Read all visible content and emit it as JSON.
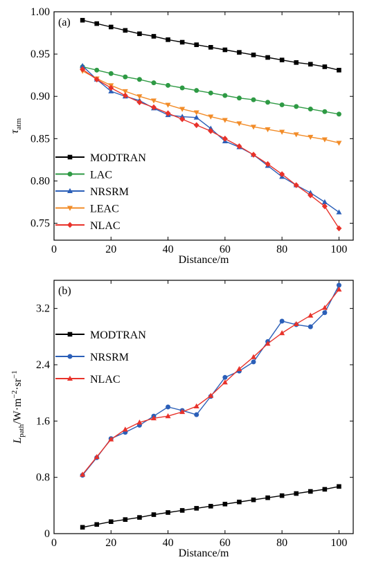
{
  "chart_data": [
    {
      "type": "line",
      "panel_label": "(a)",
      "xlabel": "Distance/m",
      "ylabel_main": "τ",
      "ylabel_sub": "atm",
      "xlim": [
        0,
        105
      ],
      "ylim": [
        0.73,
        1.0
      ],
      "xticks": [
        0,
        20,
        40,
        60,
        80,
        100
      ],
      "yticks": [
        0.75,
        0.8,
        0.85,
        0.9,
        0.95,
        1.0
      ],
      "ytick_labels": [
        "0.75",
        "0.80",
        "0.85",
        "0.90",
        "0.95",
        "1.00"
      ],
      "grid": false,
      "legend_position": "bottom-left",
      "x": [
        10,
        15,
        20,
        25,
        30,
        35,
        40,
        45,
        50,
        55,
        60,
        65,
        70,
        75,
        80,
        85,
        90,
        95,
        100
      ],
      "series": [
        {
          "name": "MODTRAN",
          "color": "#000000",
          "marker": "square",
          "values": [
            0.99,
            0.986,
            0.982,
            0.978,
            0.974,
            0.971,
            0.967,
            0.964,
            0.961,
            0.958,
            0.955,
            0.952,
            0.949,
            0.946,
            0.943,
            0.94,
            0.938,
            0.935,
            0.931
          ]
        },
        {
          "name": "LAC",
          "color": "#2e9a44",
          "marker": "circle",
          "values": [
            0.935,
            0.931,
            0.927,
            0.923,
            0.92,
            0.916,
            0.913,
            0.91,
            0.907,
            0.904,
            0.901,
            0.898,
            0.896,
            0.893,
            0.89,
            0.888,
            0.885,
            0.882,
            0.879
          ]
        },
        {
          "name": "NRSRM",
          "color": "#2b5fb8",
          "marker": "triangle-up",
          "values": [
            0.936,
            0.92,
            0.906,
            0.9,
            0.895,
            0.886,
            0.878,
            0.876,
            0.875,
            0.862,
            0.847,
            0.84,
            0.831,
            0.818,
            0.805,
            0.795,
            0.786,
            0.775,
            0.763
          ]
        },
        {
          "name": "LEAC",
          "color": "#f28c28",
          "marker": "triangle-down",
          "values": [
            0.93,
            0.921,
            0.913,
            0.906,
            0.9,
            0.895,
            0.89,
            0.885,
            0.881,
            0.876,
            0.872,
            0.868,
            0.864,
            0.861,
            0.858,
            0.855,
            0.852,
            0.849,
            0.845
          ]
        },
        {
          "name": "NLAC",
          "color": "#e8322a",
          "marker": "diamond",
          "values": [
            0.932,
            0.92,
            0.91,
            0.901,
            0.893,
            0.887,
            0.88,
            0.873,
            0.866,
            0.859,
            0.85,
            0.841,
            0.831,
            0.82,
            0.808,
            0.795,
            0.783,
            0.77,
            0.744
          ]
        }
      ]
    },
    {
      "type": "line",
      "panel_label": "(b)",
      "xlabel": "Distance/m",
      "ylabel_main": "L",
      "ylabel_sub": "path",
      "ylabel_unit": "/W·m",
      "ylabel_sup1": "−2",
      "ylabel_mid": "·sr",
      "ylabel_sup2": "−1",
      "xlim": [
        0,
        105
      ],
      "ylim": [
        0,
        3.6
      ],
      "xticks": [
        0,
        20,
        40,
        60,
        80,
        100
      ],
      "yticks": [
        0,
        0.8,
        1.6,
        2.4,
        3.2
      ],
      "ytick_labels": [
        "0",
        "0.8",
        "1.6",
        "2.4",
        "3.2"
      ],
      "grid": false,
      "legend_position": "top-left",
      "x": [
        10,
        15,
        20,
        25,
        30,
        35,
        40,
        45,
        50,
        55,
        60,
        65,
        70,
        75,
        80,
        85,
        90,
        95,
        100
      ],
      "series": [
        {
          "name": "MODTRAN",
          "color": "#000000",
          "marker": "square",
          "values": [
            0.09,
            0.13,
            0.17,
            0.2,
            0.23,
            0.27,
            0.3,
            0.33,
            0.36,
            0.39,
            0.42,
            0.45,
            0.48,
            0.51,
            0.54,
            0.57,
            0.6,
            0.63,
            0.67
          ]
        },
        {
          "name": "NRSRM",
          "color": "#2b5fb8",
          "marker": "circle",
          "values": [
            0.83,
            1.08,
            1.35,
            1.44,
            1.54,
            1.67,
            1.8,
            1.75,
            1.69,
            1.95,
            2.22,
            2.31,
            2.44,
            2.73,
            3.02,
            2.97,
            2.94,
            3.14,
            3.53
          ]
        },
        {
          "name": "NLAC",
          "color": "#e8322a",
          "marker": "triangle-up",
          "values": [
            0.84,
            1.09,
            1.34,
            1.48,
            1.58,
            1.64,
            1.67,
            1.73,
            1.81,
            1.96,
            2.15,
            2.34,
            2.51,
            2.7,
            2.85,
            2.98,
            3.1,
            3.21,
            3.47
          ]
        }
      ]
    }
  ]
}
